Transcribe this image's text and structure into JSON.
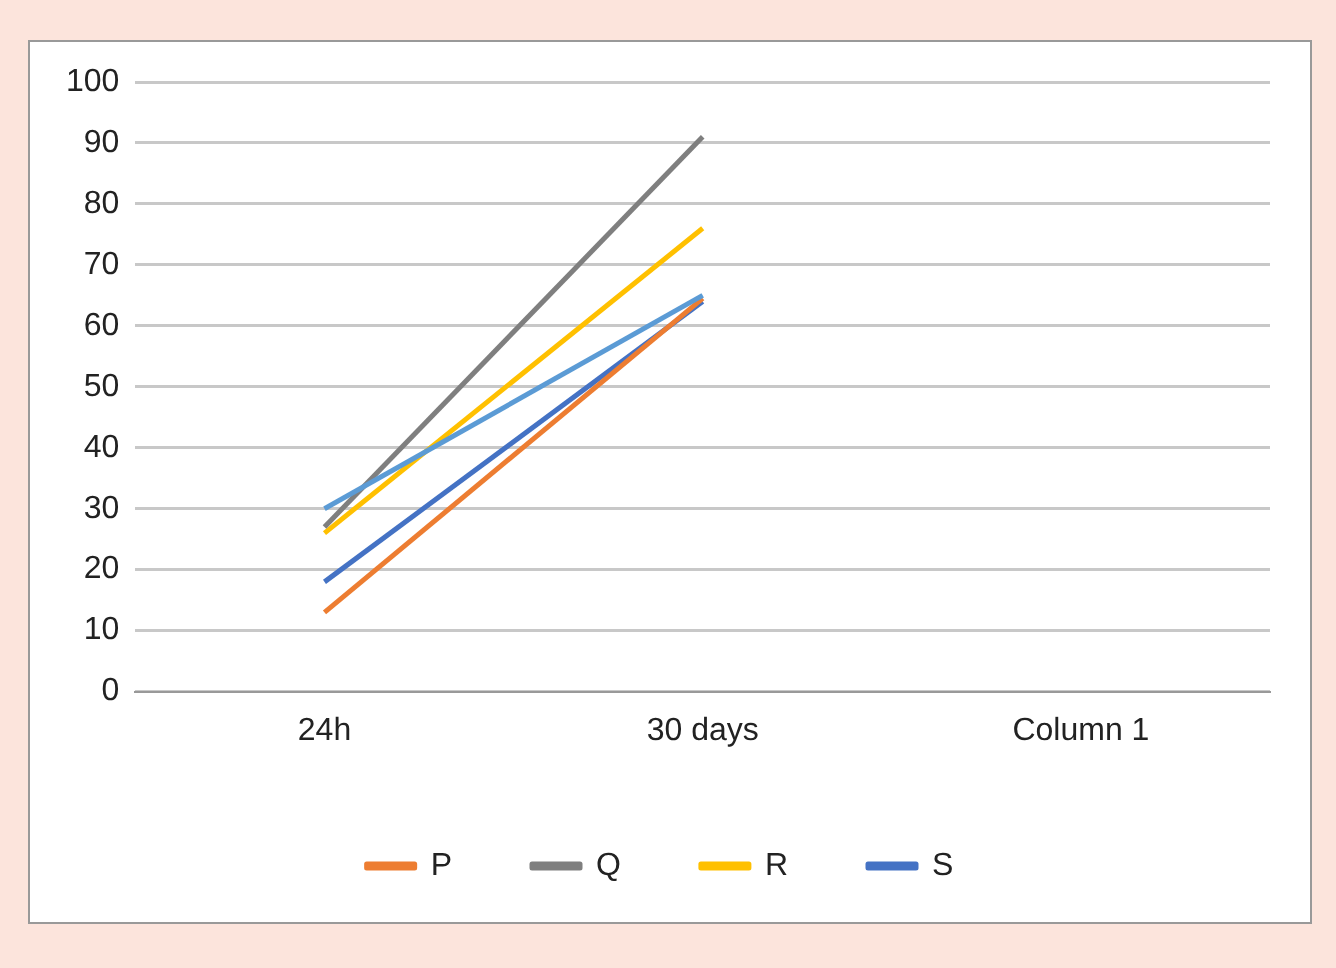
{
  "chart_data": {
    "type": "line",
    "categories": [
      "24h",
      "30 days",
      "Column 1"
    ],
    "series": [
      {
        "color": "#5b9bd5",
        "values": [
          30,
          65,
          null
        ]
      },
      {
        "name": "P",
        "color": "#ed7d31",
        "values": [
          13,
          64.5,
          null
        ]
      },
      {
        "name": "Q",
        "color": "#7f7f7f",
        "values": [
          27,
          91,
          null
        ]
      },
      {
        "name": "R",
        "color": "#ffc000",
        "values": [
          26,
          76,
          null
        ]
      },
      {
        "name": "S",
        "color": "#4472c4",
        "values": [
          18,
          64,
          null
        ]
      }
    ],
    "ylim": [
      0,
      100
    ],
    "yticks": [
      0,
      10,
      20,
      30,
      40,
      50,
      60,
      70,
      80,
      90,
      100
    ],
    "grid": "y",
    "legend": "bottom",
    "marker": "none",
    "line_style": "solid"
  }
}
